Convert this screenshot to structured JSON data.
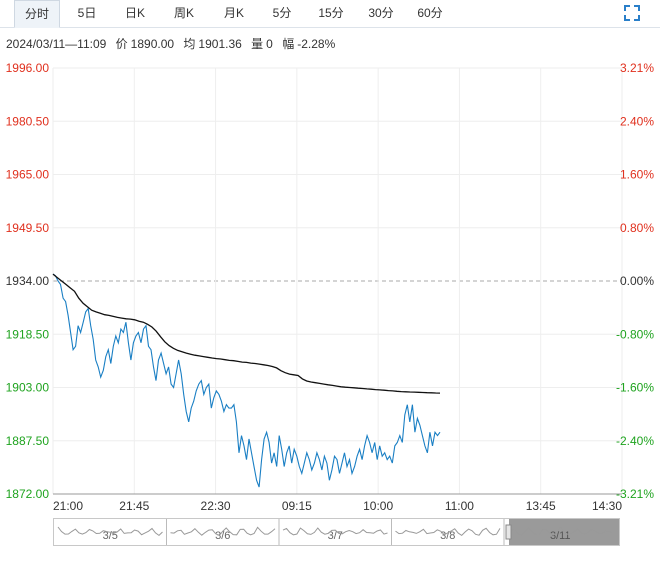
{
  "tabs": [
    {
      "label": "分时",
      "active": true
    },
    {
      "label": "5日",
      "active": false
    },
    {
      "label": "日K",
      "active": false
    },
    {
      "label": "周K",
      "active": false
    },
    {
      "label": "月K",
      "active": false
    },
    {
      "label": "5分",
      "active": false
    },
    {
      "label": "15分",
      "active": false
    },
    {
      "label": "30分",
      "active": false
    },
    {
      "label": "60分",
      "active": false
    }
  ],
  "info": {
    "datetime": "2024/03/11—11:09",
    "price_label": "价",
    "price": "1890.00",
    "avg_label": "均",
    "avg": "1901.36",
    "vol_label": "量",
    "vol": "0",
    "chg_label": "幅",
    "chg": "-2.28%"
  },
  "colors": {
    "up": "#e0301e",
    "down": "#1fa31f",
    "price_line": "#1a7fc4",
    "avg_line": "#111111",
    "grid": "#eeeeee"
  },
  "navigator": {
    "dates": [
      "3/5",
      "3/6",
      "3/7",
      "3/8",
      "3/11"
    ]
  },
  "chart_data": {
    "type": "line",
    "base_price": 1934.0,
    "ylim": [
      1872.0,
      1996.0
    ],
    "y_ticks": [
      "1996.00",
      "1980.50",
      "1965.00",
      "1949.50",
      "1934.00",
      "1918.50",
      "1903.00",
      "1887.50",
      "1872.00"
    ],
    "pct_ticks": [
      "3.21%",
      "2.40%",
      "1.60%",
      "0.80%",
      "0.00%",
      "-0.80%",
      "-1.60%",
      "-2.40%",
      "-3.21%"
    ],
    "x_ticks": [
      "21:00",
      "21:45",
      "22:30",
      "09:15",
      "10:00",
      "11:00",
      "13:45",
      "14:30"
    ],
    "series": [
      {
        "role": "price",
        "values": [
          1936,
          1935.5,
          1934,
          1933,
          1929,
          1928,
          1924,
          1919,
          1914,
          1915,
          1921,
          1919,
          1922,
          1925,
          1926,
          1921,
          1917,
          1911,
          1909,
          1906,
          1908,
          1912,
          1914,
          1910,
          1915,
          1918,
          1916,
          1920,
          1919,
          1922,
          1916,
          1911,
          1916,
          1918,
          1919,
          1916,
          1920,
          1921,
          1915,
          1914,
          1909,
          1905,
          1911,
          1913,
          1910,
          1907,
          1909,
          1904,
          1903,
          1907,
          1911,
          1907,
          1901,
          1896,
          1893,
          1897,
          1899,
          1902,
          1904,
          1905,
          1901,
          1903,
          1904,
          1897,
          1900,
          1902,
          1901,
          1899,
          1896,
          1898,
          1897,
          1897,
          1898,
          1893,
          1884,
          1889,
          1886,
          1882,
          1888,
          1884,
          1880,
          1876,
          1874,
          1882,
          1888,
          1890,
          1887,
          1881,
          1884,
          1880,
          1889,
          1885,
          1880,
          1884,
          1886,
          1881,
          1885,
          1883,
          1880,
          1878,
          1881,
          1884,
          1882,
          1879,
          1881,
          1884,
          1882,
          1879,
          1883,
          1881,
          1876,
          1879,
          1883,
          1882,
          1878,
          1881,
          1884,
          1880,
          1882,
          1878,
          1880,
          1883,
          1885,
          1882,
          1886,
          1889,
          1887,
          1884,
          1887,
          1882,
          1886,
          1883,
          1884,
          1882,
          1883,
          1881,
          1886,
          1887,
          1889,
          1887,
          1895,
          1898,
          1893,
          1898,
          1890,
          1894,
          1892,
          1889,
          1886,
          1884,
          1890,
          1886,
          1890,
          1889,
          1890
        ]
      },
      {
        "role": "avg",
        "values": [
          1936,
          1935,
          1934,
          1933,
          1932,
          1931,
          1929,
          1927.5,
          1926.5,
          1925.5,
          1925,
          1924.6,
          1924.2,
          1924,
          1923.7,
          1923.4,
          1923.2,
          1923,
          1922.9,
          1922.7,
          1922.3,
          1922,
          1921.4,
          1920.6,
          1919.4,
          1917.8,
          1916.3,
          1915.2,
          1914.4,
          1913.8,
          1913.4,
          1913,
          1912.7,
          1912.4,
          1912.2,
          1912,
          1911.8,
          1911.6,
          1911.4,
          1911.3,
          1911.1,
          1910.9,
          1910.8,
          1910.6,
          1910.4,
          1910.3,
          1910.1,
          1910,
          1909.8,
          1909.6,
          1909.4,
          1909.1,
          1908.7,
          1907.9,
          1907.3,
          1906.9,
          1906.7,
          1906.5,
          1905.5,
          1904.9,
          1904.6,
          1904.4,
          1904.2,
          1904.0,
          1903.8,
          1903.6,
          1903.4,
          1903.2,
          1903.1,
          1903.0,
          1902.9,
          1902.8,
          1902.7,
          1902.6,
          1902.5,
          1902.4,
          1902.3,
          1902.2,
          1902.1,
          1902.0,
          1901.9,
          1901.8,
          1901.75,
          1901.7,
          1901.65,
          1901.6,
          1901.55,
          1901.5,
          1901.45,
          1901.4,
          1901.36
        ]
      }
    ]
  }
}
